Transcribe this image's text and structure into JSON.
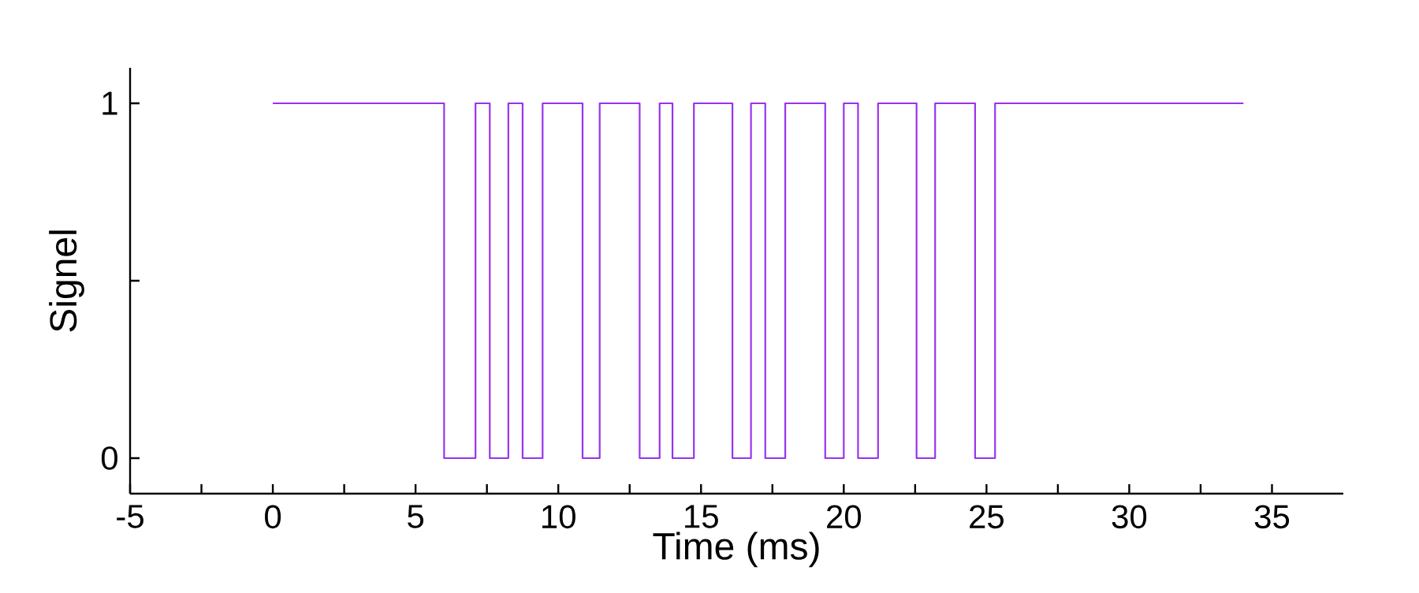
{
  "chart_data": {
    "type": "step",
    "xlabel": "Time (ms)",
    "ylabel": "Signel",
    "x": [
      0,
      6.0,
      7.1,
      7.6,
      8.25,
      8.75,
      9.45,
      10.85,
      11.45,
      12.85,
      13.55,
      14.0,
      14.75,
      16.1,
      16.75,
      17.25,
      17.95,
      19.35,
      20.0,
      20.5,
      21.2,
      22.55,
      23.2,
      24.6,
      25.3,
      34
    ],
    "series": [
      {
        "color": "#9933ee",
        "values": [
          1,
          0,
          1,
          0,
          1,
          0,
          1,
          0,
          1,
          0,
          1,
          0,
          1,
          0,
          1,
          0,
          1,
          0,
          1,
          0,
          1,
          0,
          1,
          0,
          1,
          1
        ]
      }
    ],
    "xlim": [
      -5,
      37.5
    ],
    "ylim": [
      -0.1,
      1.1
    ],
    "xticks": [
      -5,
      {
        "value": -2.5,
        "label": null
      },
      0,
      {
        "value": 2.5,
        "label": null
      },
      5,
      {
        "value": 7.5,
        "label": null
      },
      10,
      {
        "value": 12.5,
        "label": null
      },
      15,
      {
        "value": 17.5,
        "label": null
      },
      20,
      {
        "value": 22.5,
        "label": null
      },
      25,
      {
        "value": 27.5,
        "label": null
      },
      30,
      {
        "value": 32.5,
        "label": null
      },
      35
    ],
    "yticks": [
      0,
      {
        "value": 0.5,
        "label": null
      },
      1
    ],
    "grid": false,
    "marker": "none",
    "line_style": "solid"
  }
}
